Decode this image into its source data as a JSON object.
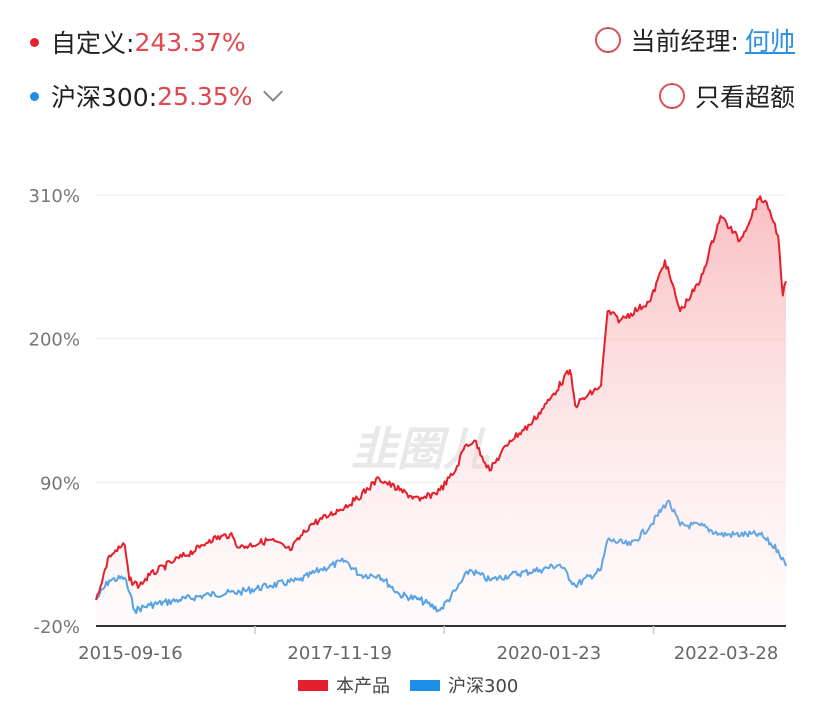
{
  "header": {
    "custom_label": "自定义:",
    "custom_value": "243.37%",
    "index_label": "沪深300:",
    "index_value": "25.35%",
    "manager_label": "当前经理:",
    "manager_name": "何帅",
    "excess_label": "只看超额"
  },
  "watermark": "韭圈儿",
  "chart_data": {
    "type": "area",
    "yticks": [
      "310%",
      "200%",
      "90%",
      "-20%"
    ],
    "ytick_values": [
      310,
      200,
      90,
      -20
    ],
    "ylim": [
      -20,
      310
    ],
    "xlim": [
      "2015-05-08",
      "2022-07-12"
    ],
    "xticks": [
      {
        "date": "2015-09-16",
        "label": "2015-09-16"
      },
      {
        "date": "2017-11-19",
        "label": "2017-11-19"
      },
      {
        "date": "2020-01-23",
        "label": "2020-01-23"
      },
      {
        "date": "2022-03-28",
        "label": "2022-03-28"
      }
    ],
    "legend_position": "bottom",
    "series": [
      {
        "name": "本产品",
        "color": "#e5202c",
        "fill": true,
        "points": [
          [
            "2015-05-08",
            0
          ],
          [
            "2015-06-28",
            34
          ],
          [
            "2015-08-25",
            42
          ],
          [
            "2015-09-12",
            15
          ],
          [
            "2015-10-20",
            11
          ],
          [
            "2015-11-28",
            19
          ],
          [
            "2016-03-01",
            30
          ],
          [
            "2016-06-05",
            40
          ],
          [
            "2016-07-12",
            46
          ],
          [
            "2016-09-28",
            50
          ],
          [
            "2016-11-05",
            40
          ],
          [
            "2017-02-28",
            46
          ],
          [
            "2017-05-15",
            38
          ],
          [
            "2017-07-28",
            57
          ],
          [
            "2017-10-12",
            65
          ],
          [
            "2018-01-15",
            76
          ],
          [
            "2018-04-18",
            93
          ],
          [
            "2018-07-05",
            84
          ],
          [
            "2018-09-20",
            76
          ],
          [
            "2018-12-05",
            84
          ],
          [
            "2019-02-02",
            99
          ],
          [
            "2019-03-10",
            118
          ],
          [
            "2019-04-15",
            122
          ],
          [
            "2019-06-12",
            99
          ],
          [
            "2019-08-28",
            122
          ],
          [
            "2019-11-12",
            134
          ],
          [
            "2020-01-25",
            153
          ],
          [
            "2020-04-12",
            176
          ],
          [
            "2020-05-02",
            149
          ],
          [
            "2020-08-08",
            164
          ],
          [
            "2020-09-02",
            221
          ],
          [
            "2020-10-20",
            214
          ],
          [
            "2021-02-12",
            229
          ],
          [
            "2021-04-08",
            260
          ],
          [
            "2021-06-05",
            221
          ],
          [
            "2021-08-20",
            244
          ],
          [
            "2021-11-05",
            294
          ],
          [
            "2022-01-18",
            275
          ],
          [
            "2022-04-05",
            309
          ],
          [
            "2022-05-12",
            298
          ],
          [
            "2022-06-12",
            279
          ],
          [
            "2022-06-30",
            233
          ],
          [
            "2022-07-12",
            244
          ]
        ]
      },
      {
        "name": "沪深300",
        "color": "#1f8ee6",
        "fill": false,
        "points": [
          [
            "2015-05-08",
            0
          ],
          [
            "2015-06-28",
            15
          ],
          [
            "2015-08-25",
            17
          ],
          [
            "2015-10-02",
            -8
          ],
          [
            "2015-11-28",
            -4
          ],
          [
            "2016-03-20",
            0
          ],
          [
            "2016-07-12",
            4
          ],
          [
            "2016-11-05",
            6
          ],
          [
            "2017-02-28",
            11
          ],
          [
            "2017-06-20",
            15
          ],
          [
            "2017-09-05",
            23
          ],
          [
            "2017-12-10",
            30
          ],
          [
            "2018-02-05",
            19
          ],
          [
            "2018-04-18",
            19
          ],
          [
            "2018-07-05",
            4
          ],
          [
            "2018-09-20",
            0
          ],
          [
            "2018-12-05",
            -8
          ],
          [
            "2019-02-02",
            7
          ],
          [
            "2019-03-28",
            23
          ],
          [
            "2019-06-12",
            15
          ],
          [
            "2019-08-28",
            19
          ],
          [
            "2019-12-20",
            23
          ],
          [
            "2020-03-05",
            27
          ],
          [
            "2020-05-02",
            11
          ],
          [
            "2020-08-08",
            23
          ],
          [
            "2020-09-02",
            46
          ],
          [
            "2020-11-28",
            42
          ],
          [
            "2021-02-12",
            57
          ],
          [
            "2021-04-20",
            76
          ],
          [
            "2021-06-05",
            57
          ],
          [
            "2021-08-20",
            57
          ],
          [
            "2021-11-05",
            50
          ],
          [
            "2022-04-05",
            50
          ],
          [
            "2022-06-12",
            38
          ],
          [
            "2022-07-12",
            26
          ]
        ]
      }
    ]
  }
}
